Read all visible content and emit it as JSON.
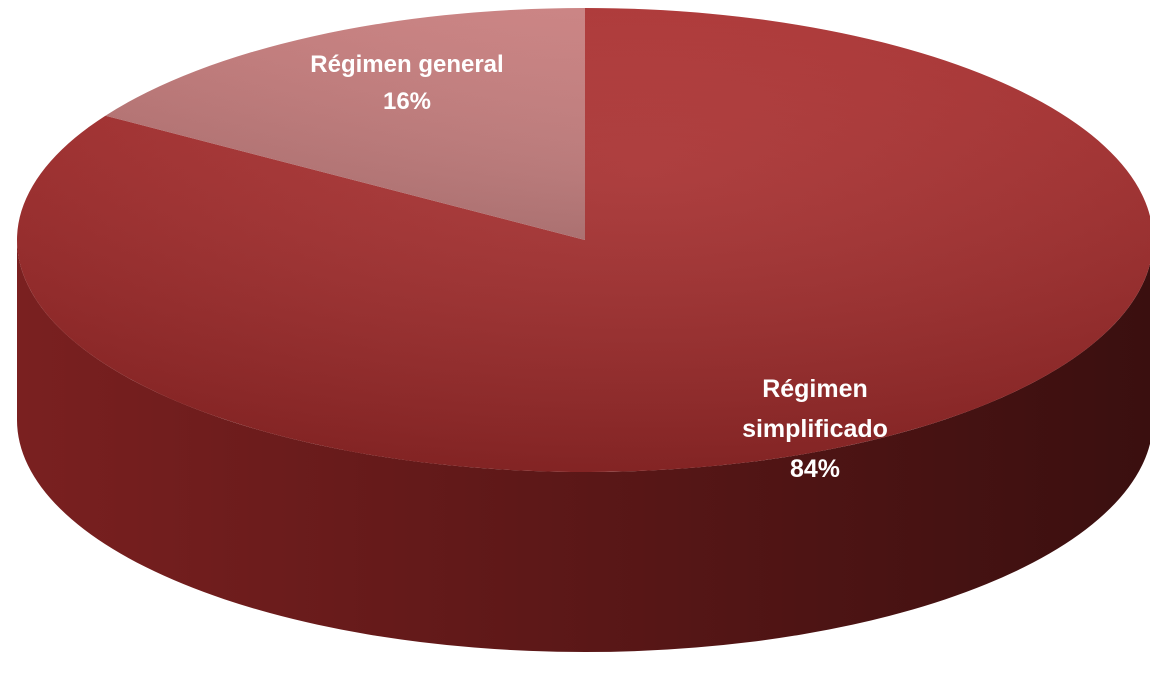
{
  "chart_data": {
    "type": "pie",
    "style": "3d",
    "title": "",
    "legend": "none",
    "slices": [
      {
        "label": "Régimen general",
        "label_lines": [
          "Régimen general"
        ],
        "percent_label": "16%",
        "value": 16,
        "color": "#cc7e7e"
      },
      {
        "label": "Régimen simplificado",
        "label_lines": [
          "Régimen",
          "simplificado"
        ],
        "percent_label": "84%",
        "value": 84,
        "color": "#a83232"
      }
    ]
  }
}
